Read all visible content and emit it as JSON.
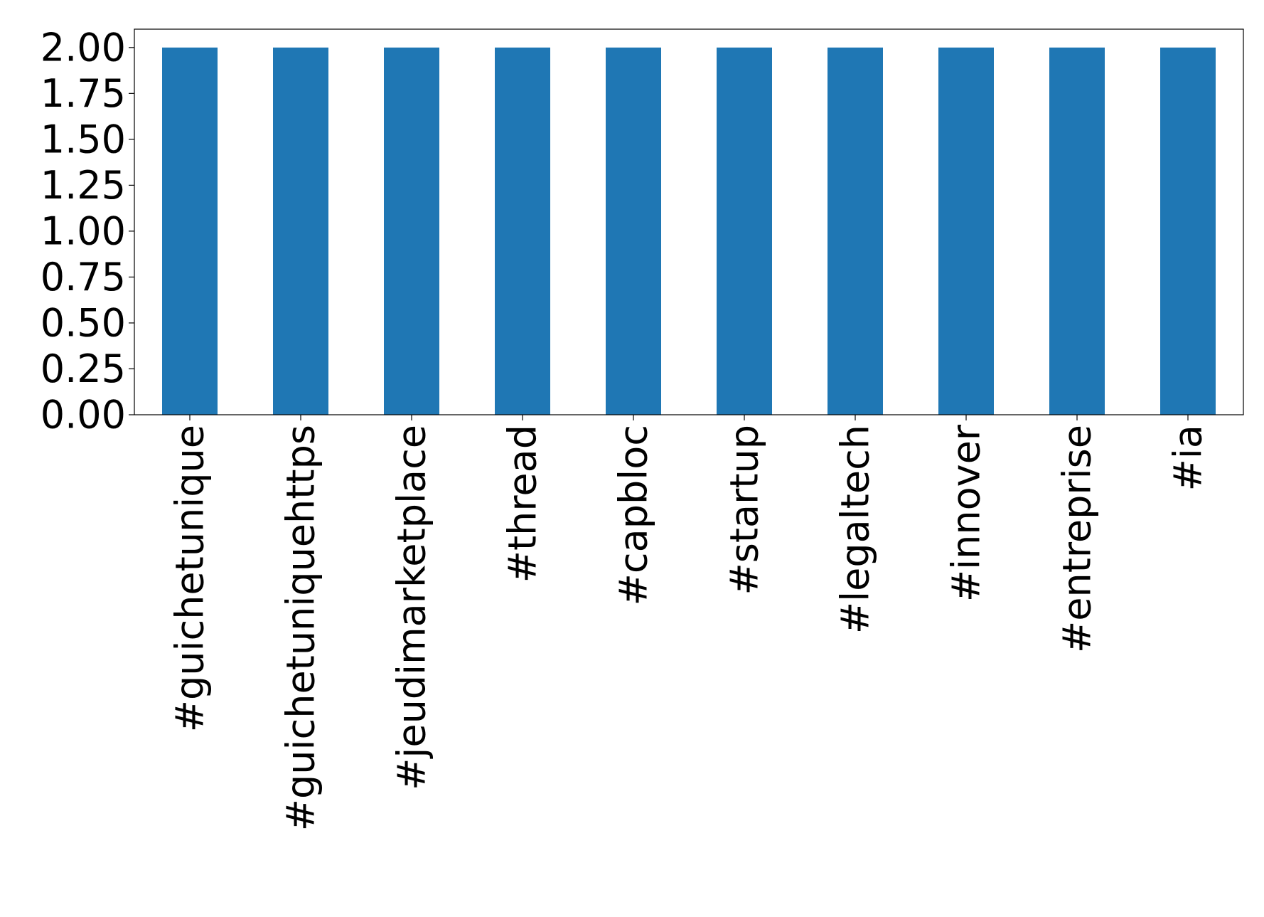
{
  "chart_data": {
    "type": "bar",
    "categories": [
      "#guichetunique",
      "#guichetuniquehttps",
      "#jeudimarketplace",
      "#thread",
      "#capbloc",
      "#startup",
      "#legaltech",
      "#innover",
      "#entreprise",
      "#ia"
    ],
    "values": [
      2,
      2,
      2,
      2,
      2,
      2,
      2,
      2,
      2,
      2
    ],
    "color": "#1f77b4",
    "ylim": [
      0,
      2.1
    ],
    "yticks": [
      {
        "value": 0,
        "label": "0.00"
      },
      {
        "value": 0.25,
        "label": "0.25"
      },
      {
        "value": 0.5,
        "label": "0.50"
      },
      {
        "value": 0.75,
        "label": "0.75"
      },
      {
        "value": 1,
        "label": "1.00"
      },
      {
        "value": 1.25,
        "label": "1.25"
      },
      {
        "value": 1.5,
        "label": "1.50"
      },
      {
        "value": 1.75,
        "label": "1.75"
      },
      {
        "value": 2,
        "label": "2.00"
      }
    ],
    "grid": false
  }
}
